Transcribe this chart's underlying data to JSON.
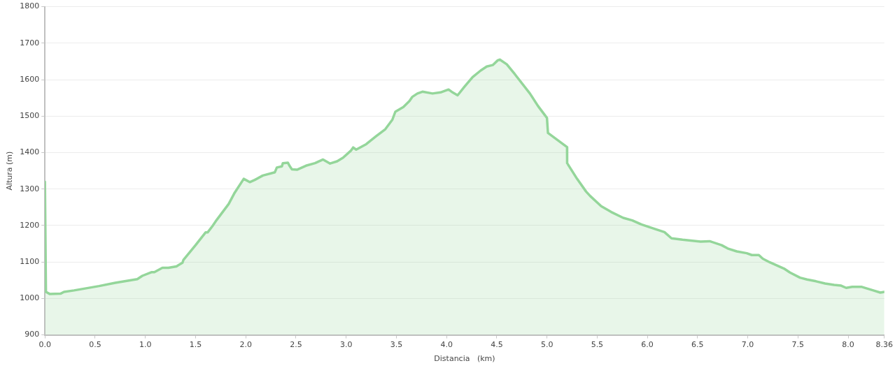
{
  "chart_data": {
    "type": "area",
    "xlabel": "Distancia   (km)",
    "ylabel": "Altura (m)",
    "xlim": [
      0,
      8.36
    ],
    "ylim": [
      900,
      1800
    ],
    "xticks": [
      {
        "value": 0,
        "label": "0.0"
      },
      {
        "value": 0.5,
        "label": "0.5"
      },
      {
        "value": 1,
        "label": "1.0"
      },
      {
        "value": 1.5,
        "label": "1.5"
      },
      {
        "value": 2,
        "label": "2.0"
      },
      {
        "value": 2.5,
        "label": "2.5"
      },
      {
        "value": 3,
        "label": "3.0"
      },
      {
        "value": 3.5,
        "label": "3.5"
      },
      {
        "value": 4,
        "label": "4.0"
      },
      {
        "value": 4.5,
        "label": "4.5"
      },
      {
        "value": 5,
        "label": "5.0"
      },
      {
        "value": 5.5,
        "label": "5.5"
      },
      {
        "value": 6,
        "label": "6.0"
      },
      {
        "value": 6.5,
        "label": "6.5"
      },
      {
        "value": 7,
        "label": "7.0"
      },
      {
        "value": 7.5,
        "label": "7.5"
      },
      {
        "value": 8,
        "label": "8.0"
      },
      {
        "value": 8.36,
        "label": "8.36"
      }
    ],
    "yticks": [
      900,
      1000,
      1100,
      1200,
      1300,
      1400,
      1500,
      1600,
      1700,
      1800
    ],
    "grid": "y",
    "legend": false,
    "marker": "none",
    "line_style": "solid",
    "series": [
      {
        "color": "#94d69a",
        "x": [
          0,
          0.01,
          0.05,
          0.155,
          0.19,
          0.29,
          0.54,
          0.7,
          0.92,
          0.97,
          1.06,
          1.09,
          1.17,
          1.23,
          1.31,
          1.37,
          1.38,
          1.5,
          1.6,
          1.62,
          1.67,
          1.71,
          1.83,
          1.89,
          1.98,
          2.04,
          2.09,
          2.17,
          2.29,
          2.31,
          2.36,
          2.37,
          2.42,
          2.44,
          2.46,
          2.51,
          2.6,
          2.69,
          2.77,
          2.84,
          2.91,
          2.97,
          3.05,
          3.07,
          3.1,
          3.2,
          3.3,
          3.39,
          3.46,
          3.49,
          3.57,
          3.63,
          3.66,
          3.71,
          3.76,
          3.86,
          3.94,
          4.02,
          4.06,
          4.11,
          4.18,
          4.26,
          4.34,
          4.4,
          4.46,
          4.51,
          4.53,
          4.6,
          4.68,
          4.83,
          4.91,
          5.0,
          5.01,
          5.2,
          5.201,
          5.3,
          5.39,
          5.43,
          5.54,
          5.64,
          5.76,
          5.85,
          5.94,
          6.08,
          6.17,
          6.24,
          6.35,
          6.53,
          6.62,
          6.74,
          6.8,
          6.89,
          6.99,
          7.04,
          7.11,
          7.15,
          7.22,
          7.36,
          7.42,
          7.52,
          7.59,
          7.68,
          7.77,
          7.86,
          7.93,
          7.98,
          8.04,
          8.13,
          8.25,
          8.32,
          8.36
        ],
        "values": [
          1320,
          1018,
          1012,
          1013,
          1018,
          1022,
          1034,
          1043,
          1053,
          1062,
          1072,
          1072,
          1084,
          1084,
          1088,
          1098,
          1106,
          1146,
          1181,
          1181,
          1199,
          1215,
          1259,
          1290,
          1328,
          1319,
          1325,
          1337,
          1346,
          1359,
          1362,
          1371,
          1372,
          1362,
          1354,
          1353,
          1364,
          1371,
          1381,
          1370,
          1376,
          1386,
          1406,
          1414,
          1408,
          1423,
          1445,
          1464,
          1490,
          1512,
          1525,
          1541,
          1553,
          1562,
          1567,
          1562,
          1565,
          1573,
          1565,
          1557,
          1581,
          1607,
          1625,
          1636,
          1640,
          1653,
          1655,
          1642,
          1615,
          1562,
          1528,
          1495,
          1454,
          1415,
          1371,
          1328,
          1293,
          1281,
          1253,
          1237,
          1221,
          1214,
          1203,
          1190,
          1182,
          1165,
          1161,
          1156,
          1157,
          1146,
          1137,
          1129,
          1124,
          1119,
          1119,
          1109,
          1099,
          1082,
          1071,
          1057,
          1052,
          1047,
          1041,
          1037,
          1035,
          1029,
          1032,
          1032,
          1022,
          1016,
          1018
        ]
      }
    ]
  }
}
